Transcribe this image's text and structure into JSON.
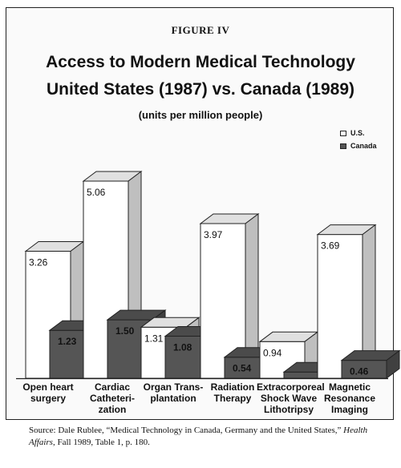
{
  "figure_label": "FIGURE IV",
  "title_line1": "Access to Modern Medical Technology",
  "title_line2": "United States (1987) vs. Canada (1989)",
  "subtitle": "(units per million people)",
  "legend": [
    {
      "name": "U.S.",
      "color": "#ffffff"
    },
    {
      "name": "Canada",
      "color": "#555555"
    }
  ],
  "chart_data": {
    "type": "bar",
    "title": "Access to Modern Medical Technology United States (1987) vs. Canada (1989)",
    "subtitle": "(units per million people)",
    "categories": [
      "Open heart\nsurgery",
      "Cardiac\nCatheteri-\nzation",
      "Organ Trans-\nplantation",
      "Radiation\nTherapy",
      "Extracorporeal\nShock Wave\nLithotripsy",
      "Magnetic\nResonance\nImaging"
    ],
    "series": [
      {
        "name": "U.S.",
        "values": [
          3.26,
          5.06,
          1.31,
          3.97,
          0.94,
          3.69
        ],
        "labels": [
          "3.26",
          "5.06",
          "1.31",
          "3.97",
          "0.94",
          "3.69"
        ]
      },
      {
        "name": "Canada",
        "values": [
          1.23,
          1.5,
          1.08,
          0.54,
          0.16,
          0.46
        ],
        "labels": [
          "1.23",
          "1.50",
          "1.08",
          "0.54",
          "0.16",
          "0.46"
        ]
      }
    ],
    "ylim": [
      0,
      5.06
    ],
    "legend_position": "top-right",
    "grid": false,
    "style": "3d"
  },
  "source_text": "Source:  Dale Rublee, “Medical Technology in Canada, Germany and the United States,” ",
  "source_journal": "Health Affairs",
  "source_rest": ", Fall 1989, Table 1, p. 180."
}
